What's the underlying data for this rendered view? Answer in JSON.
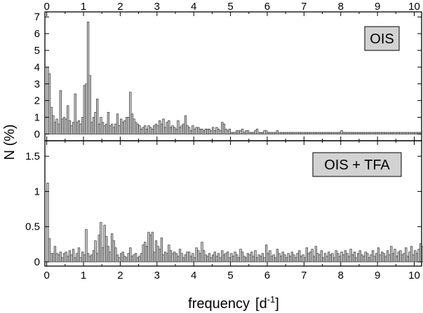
{
  "chart_data": [
    {
      "type": "bar",
      "panel": "top",
      "label": "OIS",
      "xlim": [
        -0.05,
        10.2
      ],
      "ylim": [
        -0.4,
        7.3
      ],
      "yticks": [
        0,
        1,
        2,
        3,
        4,
        5,
        6,
        7
      ],
      "xticks": [
        0,
        1,
        2,
        3,
        4,
        5,
        6,
        7,
        8,
        9,
        10
      ],
      "bin_width": 0.05,
      "values": [
        4.0,
        3.6,
        1.6,
        1.1,
        0.7,
        0.9,
        0.6,
        2.6,
        0.9,
        1.0,
        0.9,
        1.7,
        0.8,
        0.5,
        0.7,
        2.4,
        0.7,
        0.8,
        0.6,
        1.0,
        2.9,
        3.0,
        6.7,
        3.5,
        0.7,
        1.0,
        1.3,
        2.1,
        0.6,
        1.0,
        0.7,
        0.5,
        0.6,
        1.3,
        0.5,
        0.6,
        0.4,
        0.6,
        1.2,
        0.5,
        0.9,
        0.7,
        0.8,
        1.0,
        1.0,
        2.5,
        1.2,
        0.9,
        0.7,
        0.6,
        0.5,
        0.3,
        0.4,
        0.5,
        0.3,
        0.5,
        0.4,
        0.3,
        0.5,
        0.6,
        0.5,
        0.8,
        0.6,
        0.9,
        0.4,
        0.7,
        0.8,
        0.4,
        0.5,
        0.4,
        0.3,
        0.8,
        0.4,
        0.5,
        0.6,
        1.1,
        0.5,
        0.4,
        0.2,
        0.5,
        0.3,
        0.4,
        0.4,
        0.3,
        0.3,
        0.2,
        0.3,
        0.3,
        0.3,
        0.2,
        0.4,
        0.2,
        0.4,
        0.3,
        0.2,
        0.7,
        0.6,
        0.3,
        0.2,
        0.3,
        0.1,
        0.1,
        0.1,
        0.2,
        0.2,
        0.2,
        0.3,
        0.1,
        0.2,
        0.2,
        0.1,
        0.1,
        0.1,
        0.2,
        0.3,
        0.1,
        0.1,
        0.1,
        0.2,
        0.2,
        0.1,
        0.1,
        0.1,
        0.1,
        0.1,
        0.2,
        0.1,
        0.1,
        0.1,
        0.1,
        0.1,
        0.1,
        0.1,
        0.1,
        0.1,
        0.1,
        0.1,
        0.1,
        0.1,
        0.1,
        0.1,
        0.1,
        0.1,
        0.1,
        0.1,
        0.1,
        0.1,
        0.1,
        0.1,
        0.1,
        0.1,
        0.1,
        0.1,
        0.1,
        0.1,
        0.1,
        0.1,
        0.1,
        0.1,
        0.1,
        0.2,
        0.1,
        0.1,
        0.1,
        0.1,
        0.1,
        0.1,
        0.1,
        0.1,
        0.1,
        0.1,
        0.1,
        0.1,
        0.1,
        0.1,
        0.1,
        0.1,
        0.1,
        0.1,
        0.1,
        0.1,
        0.1,
        0.1,
        0.1,
        0.1,
        0.1,
        0.1,
        0.1,
        0.1,
        0.1,
        0.1,
        0.1,
        0.1,
        0.1,
        0.1,
        0.1,
        0.1,
        0.1,
        0.1,
        0.1,
        0.1,
        0.1,
        0.1,
        0.1
      ]
    },
    {
      "type": "bar",
      "panel": "bottom",
      "label": "OIS + TFA",
      "xlim": [
        -0.05,
        10.2
      ],
      "ylim": [
        -0.06,
        1.72
      ],
      "yticks": [
        0,
        0.5,
        1,
        1.5
      ],
      "ytick_labels": [
        "0",
        "0.5",
        "1",
        "1.5"
      ],
      "xticks": [
        0,
        1,
        2,
        3,
        4,
        5,
        6,
        7,
        8,
        9,
        10
      ],
      "bin_width": 0.05,
      "values": [
        1.12,
        0.33,
        0.12,
        0.12,
        0.22,
        0.12,
        0.1,
        0.14,
        0.06,
        0.12,
        0.14,
        0.08,
        0.16,
        0.1,
        0.18,
        0.06,
        0.12,
        0.2,
        0.06,
        0.14,
        0.1,
        0.46,
        0.12,
        0.08,
        0.1,
        0.16,
        0.3,
        0.12,
        0.38,
        0.56,
        0.2,
        0.52,
        0.36,
        0.22,
        0.14,
        0.4,
        0.3,
        0.2,
        0.1,
        0.06,
        0.12,
        0.14,
        0.08,
        0.06,
        0.12,
        0.2,
        0.08,
        0.1,
        0.12,
        0.06,
        0.08,
        0.12,
        0.24,
        0.28,
        0.22,
        0.42,
        0.38,
        0.42,
        0.14,
        0.3,
        0.22,
        0.18,
        0.34,
        0.1,
        0.14,
        0.12,
        0.24,
        0.16,
        0.12,
        0.14,
        0.12,
        0.08,
        0.18,
        0.12,
        0.06,
        0.1,
        0.14,
        0.14,
        0.08,
        0.12,
        0.06,
        0.2,
        0.16,
        0.12,
        0.28,
        0.16,
        0.1,
        0.08,
        0.12,
        0.06,
        0.1,
        0.14,
        0.08,
        0.12,
        0.06,
        0.16,
        0.1,
        0.12,
        0.14,
        0.06,
        0.12,
        0.08,
        0.14,
        0.1,
        0.06,
        0.18,
        0.14,
        0.08,
        0.06,
        0.12,
        0.1,
        0.14,
        0.08,
        0.16,
        0.06,
        0.1,
        0.08,
        0.12,
        0.06,
        0.24,
        0.12,
        0.16,
        0.08,
        0.1,
        0.06,
        0.18,
        0.12,
        0.08,
        0.14,
        0.1,
        0.06,
        0.12,
        0.08,
        0.14,
        0.1,
        0.06,
        0.12,
        0.16,
        0.08,
        0.1,
        0.06,
        0.2,
        0.12,
        0.14,
        0.18,
        0.08,
        0.22,
        0.12,
        0.1,
        0.16,
        0.06,
        0.12,
        0.08,
        0.14,
        0.1,
        0.12,
        0.06,
        0.16,
        0.12,
        0.08,
        0.14,
        0.1,
        0.16,
        0.12,
        0.08,
        0.18,
        0.1,
        0.14,
        0.06,
        0.12,
        0.16,
        0.1,
        0.08,
        0.14,
        0.12,
        0.06,
        0.1,
        0.16,
        0.08,
        0.12,
        0.2,
        0.1,
        0.14,
        0.12,
        0.08,
        0.16,
        0.1,
        0.22,
        0.12,
        0.18,
        0.08,
        0.14,
        0.16,
        0.1,
        0.12,
        0.2,
        0.08,
        0.14,
        0.22,
        0.1,
        0.16,
        0.12,
        0.18,
        0.26,
        0.22,
        0.1
      ]
    }
  ],
  "axes": {
    "xlabel_text": "frequency",
    "xlabel_unit_open": "[d",
    "xlabel_unit_sup": "-1",
    "xlabel_unit_close": "]",
    "ylabel": "N (%)"
  }
}
